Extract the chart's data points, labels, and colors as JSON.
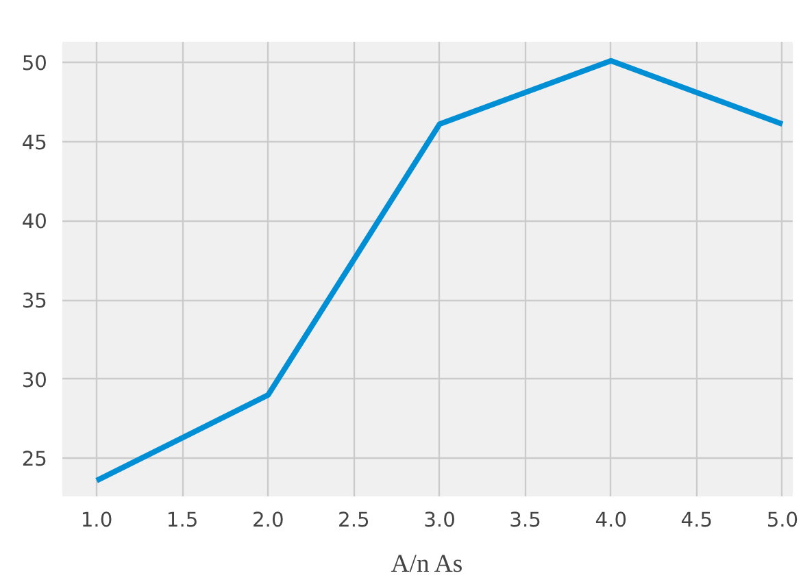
{
  "chart_data": {
    "type": "line",
    "xlabel": "A/n As",
    "x": [
      1.0,
      2.0,
      3.0,
      4.0,
      5.0
    ],
    "series": [
      {
        "color": "#008fd5",
        "values": [
          23.6,
          29.0,
          46.1,
          50.1,
          46.1
        ]
      }
    ],
    "xlim": [
      0.8,
      5.06
    ],
    "ylim": [
      22.6,
      51.3
    ],
    "xticks": [
      {
        "value": 1.0,
        "label": "1.0"
      },
      {
        "value": 1.5,
        "label": "1.5"
      },
      {
        "value": 2.0,
        "label": "2.0"
      },
      {
        "value": 2.5,
        "label": "2.5"
      },
      {
        "value": 3.0,
        "label": "3.0"
      },
      {
        "value": 3.5,
        "label": "3.5"
      },
      {
        "value": 4.0,
        "label": "4.0"
      },
      {
        "value": 4.5,
        "label": "4.5"
      },
      {
        "value": 5.0,
        "label": "5.0"
      }
    ],
    "yticks": [
      25,
      30,
      35,
      40,
      45,
      50
    ],
    "grid": true,
    "marker": "none",
    "line_style": "solid"
  }
}
